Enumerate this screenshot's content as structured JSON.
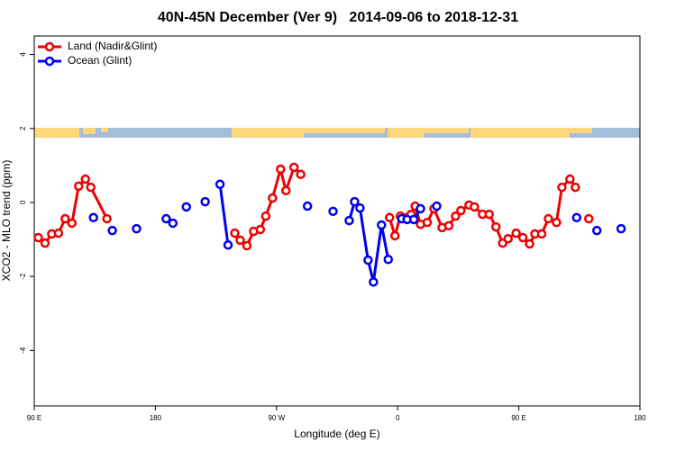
{
  "chart_data": {
    "type": "line",
    "title": "40N-45N December (Ver 9)   2014-09-06 to 2018-12-31",
    "xlabel": "Longitude (deg E)",
    "ylabel": "XCO2 - MLO trend (ppm)",
    "xlim": [
      90,
      540
    ],
    "ylim": [
      -5.5,
      4.5
    ],
    "xticks": [
      {
        "value": 90,
        "label": "90 E"
      },
      {
        "value": 180,
        "label": "180"
      },
      {
        "value": 270,
        "label": "90 W"
      },
      {
        "value": 360,
        "label": "0"
      },
      {
        "value": 450,
        "label": "90 E"
      },
      {
        "value": 540,
        "label": "180"
      }
    ],
    "yticks": [
      -4,
      -2,
      0,
      2,
      4
    ],
    "legend": "topleft",
    "series": [
      {
        "name": "Land (Nadir&Glint)",
        "color": "#ee0000",
        "x": [
          93,
          98,
          103,
          108,
          113,
          118,
          123,
          128,
          132,
          144,
          null,
          239,
          243,
          248,
          253,
          258,
          262,
          267,
          273,
          277,
          283,
          288,
          null,
          354,
          358,
          362,
          367,
          370,
          373,
          377,
          382,
          387,
          393,
          398,
          403,
          407,
          413,
          417,
          423,
          428,
          433,
          438,
          442,
          448,
          453,
          458,
          462,
          467,
          472,
          478,
          482,
          488,
          492,
          null,
          502
        ],
        "values": [
          -0.95,
          -1.1,
          -0.85,
          -0.83,
          -0.44,
          -0.56,
          0.44,
          0.63,
          0.41,
          -0.44,
          null,
          -0.83,
          -1.02,
          -1.17,
          -0.78,
          -0.73,
          -0.37,
          0.12,
          0.9,
          0.32,
          0.95,
          0.76,
          null,
          -0.41,
          -0.9,
          -0.37,
          -0.41,
          -0.32,
          -0.1,
          -0.59,
          -0.54,
          -0.17,
          -0.68,
          -0.63,
          -0.37,
          -0.22,
          -0.07,
          -0.12,
          -0.32,
          -0.32,
          -0.66,
          -1.1,
          -0.98,
          -0.83,
          -0.95,
          -1.12,
          -0.85,
          -0.85,
          -0.44,
          -0.54,
          0.41,
          0.63,
          0.41,
          null,
          -0.44
        ]
      },
      {
        "name": "Ocean (Glint)",
        "color": "#0000ee",
        "x": [
          134,
          null,
          148,
          null,
          166,
          null,
          188,
          193,
          null,
          203,
          null,
          217,
          null,
          228,
          234,
          null,
          293,
          null,
          312,
          null,
          324,
          328,
          332,
          338,
          342,
          348,
          353,
          null,
          363,
          367,
          372,
          377,
          null,
          389,
          null,
          493,
          null,
          508,
          null,
          526
        ],
        "values": [
          -0.41,
          null,
          -0.76,
          null,
          -0.71,
          null,
          -0.44,
          -0.56,
          null,
          -0.12,
          null,
          0.02,
          null,
          0.49,
          -1.15,
          null,
          -0.1,
          null,
          -0.24,
          null,
          -0.49,
          0.02,
          -0.15,
          -1.56,
          -2.15,
          -0.61,
          -1.54,
          null,
          -0.44,
          -0.46,
          -0.46,
          -0.17,
          null,
          -0.1,
          null,
          -0.41,
          null,
          -0.76,
          null,
          -0.71
        ]
      }
    ]
  }
}
